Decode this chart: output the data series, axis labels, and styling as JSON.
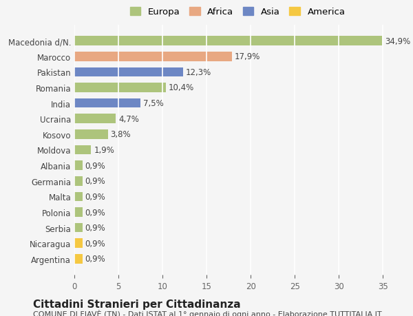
{
  "countries": [
    "Macedonia d/N.",
    "Marocco",
    "Pakistan",
    "Romania",
    "India",
    "Ucraina",
    "Kosovo",
    "Moldova",
    "Albania",
    "Germania",
    "Malta",
    "Polonia",
    "Serbia",
    "Nicaragua",
    "Argentina"
  ],
  "values": [
    34.9,
    17.9,
    12.3,
    10.4,
    7.5,
    4.7,
    3.8,
    1.9,
    0.9,
    0.9,
    0.9,
    0.9,
    0.9,
    0.9,
    0.9
  ],
  "labels": [
    "34,9%",
    "17,9%",
    "12,3%",
    "10,4%",
    "7,5%",
    "4,7%",
    "3,8%",
    "1,9%",
    "0,9%",
    "0,9%",
    "0,9%",
    "0,9%",
    "0,9%",
    "0,9%",
    "0,9%"
  ],
  "continents": [
    "Europa",
    "Africa",
    "Asia",
    "Europa",
    "Asia",
    "Europa",
    "Europa",
    "Europa",
    "Europa",
    "Europa",
    "Europa",
    "Europa",
    "Europa",
    "America",
    "America"
  ],
  "colors": {
    "Europa": "#adc47c",
    "Africa": "#e8a882",
    "Asia": "#6d87c4",
    "America": "#f5c842"
  },
  "legend_colors": {
    "Europa": "#adc47c",
    "Africa": "#e8a882",
    "Asia": "#6d87c4",
    "America": "#f5c842"
  },
  "xlim": [
    0,
    37
  ],
  "xticks": [
    0,
    5,
    10,
    15,
    20,
    25,
    30,
    35
  ],
  "title": "Cittadini Stranieri per Cittadinanza",
  "subtitle": "COMUNE DI FIAVÈ (TN) - Dati ISTAT al 1° gennaio di ogni anno - Elaborazione TUTTITALIA.IT",
  "background_color": "#f5f5f5",
  "bar_height": 0.6,
  "grid_color": "#ffffff",
  "label_fontsize": 8.5,
  "tick_fontsize": 8.5,
  "title_fontsize": 11,
  "subtitle_fontsize": 8
}
